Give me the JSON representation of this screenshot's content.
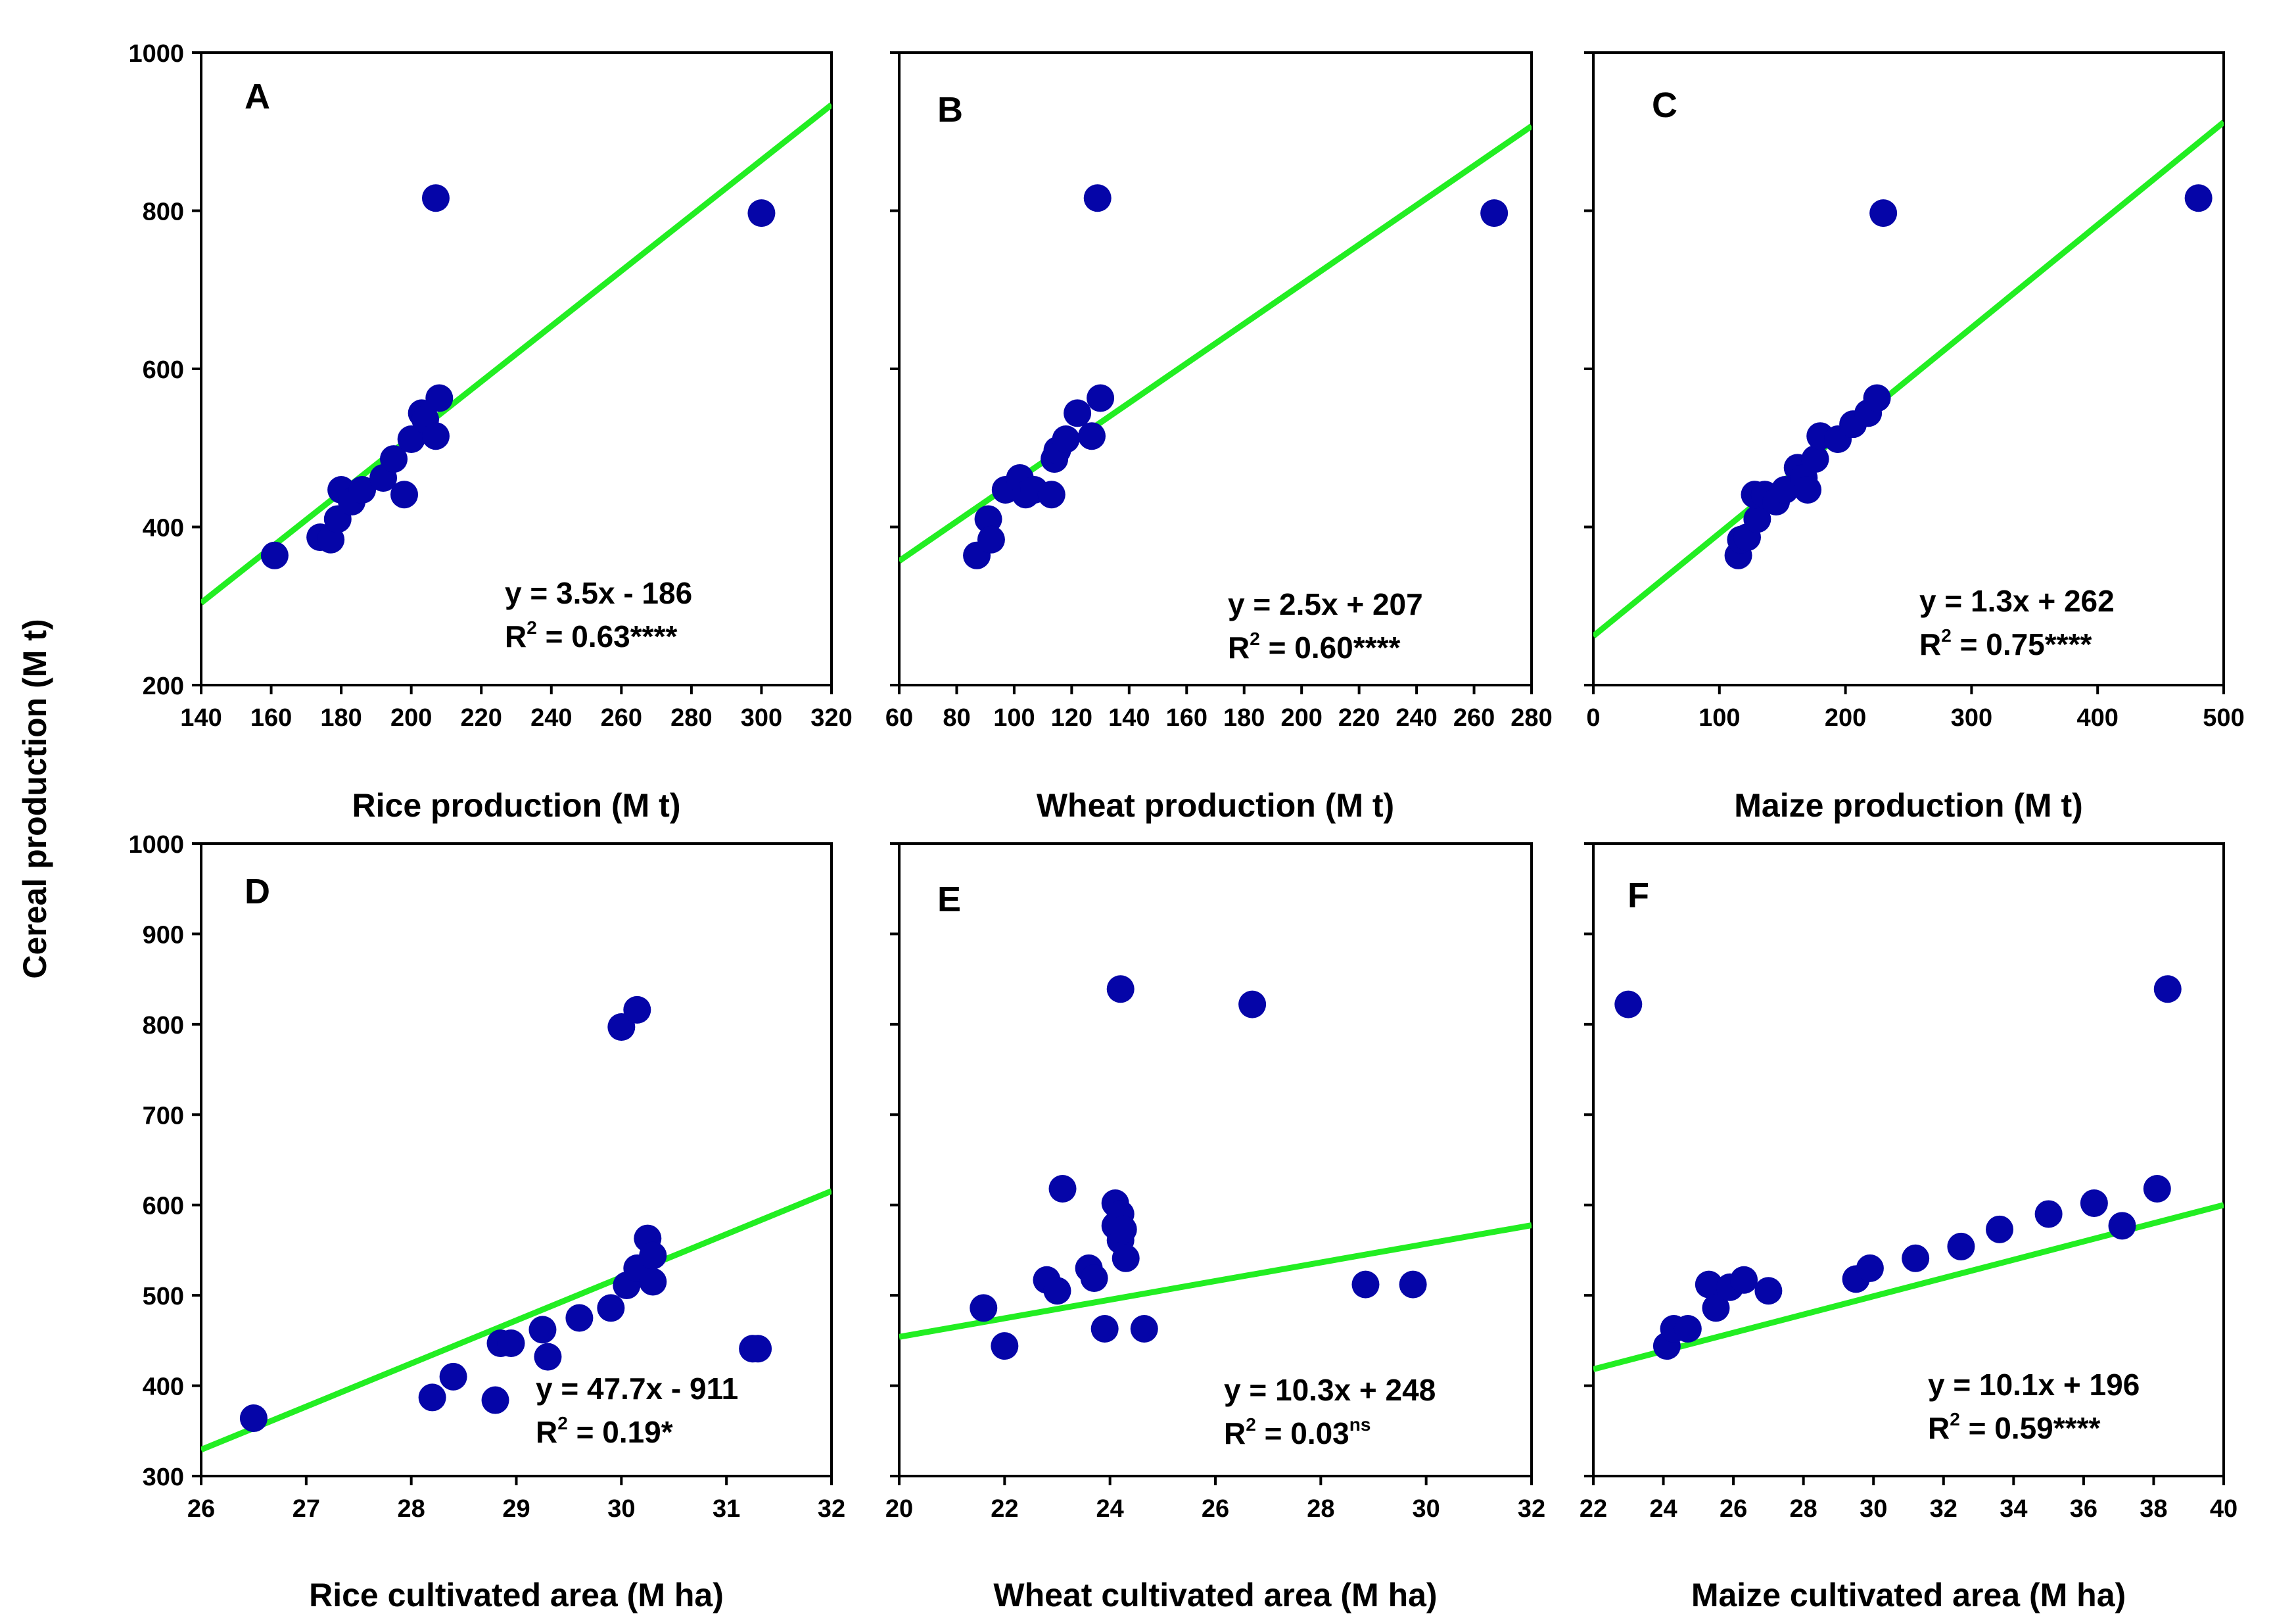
{
  "figure": {
    "shared_ylabel": "Cereal production (M t)"
  },
  "chart_data": [
    {
      "type": "scatter",
      "panel": "A",
      "xlabel": "Rice production (M t)",
      "ylabel": "Cereal production (M t)",
      "xlim": [
        140,
        320
      ],
      "ylim": [
        200,
        1000
      ],
      "xticks": [
        140,
        160,
        180,
        200,
        220,
        240,
        260,
        280,
        300,
        320
      ],
      "yticks": [
        200,
        400,
        600,
        800,
        1000
      ],
      "show_x_tick_labels": true,
      "show_y_tick_labels": true,
      "points": [
        [
          161,
          364
        ],
        [
          174,
          387
        ],
        [
          177,
          384
        ],
        [
          179,
          410
        ],
        [
          180,
          447
        ],
        [
          183,
          432
        ],
        [
          186,
          447
        ],
        [
          192,
          462
        ],
        [
          195,
          486
        ],
        [
          198,
          441
        ],
        [
          200,
          511
        ],
        [
          203,
          544
        ],
        [
          204,
          536
        ],
        [
          207,
          515
        ],
        [
          208,
          563
        ],
        [
          207,
          816
        ],
        [
          300,
          797
        ]
      ],
      "fit": {
        "slope": 3.5,
        "intercept": -186,
        "x_range": [
          140,
          320
        ]
      },
      "equation": "y = 3.5x - 186",
      "r2_prefix": "R",
      "r2_exp": "2",
      "r2_text": " = 0.63****",
      "r2_sig": ""
    },
    {
      "type": "scatter",
      "panel": "B",
      "xlabel": "Wheat production (M t)",
      "ylabel": "Cereal production (M t)",
      "xlim": [
        60,
        280
      ],
      "ylim": [
        200,
        1000
      ],
      "xticks": [
        60,
        80,
        100,
        120,
        140,
        160,
        180,
        200,
        220,
        240,
        260,
        280
      ],
      "yticks": [
        200,
        400,
        600,
        800,
        1000
      ],
      "show_x_tick_labels": true,
      "show_y_tick_labels": false,
      "points": [
        [
          87,
          364
        ],
        [
          91,
          410
        ],
        [
          92,
          384
        ],
        [
          97,
          447
        ],
        [
          102,
          462
        ],
        [
          104,
          441
        ],
        [
          107,
          447
        ],
        [
          113,
          441
        ],
        [
          114,
          486
        ],
        [
          115,
          497
        ],
        [
          118,
          511
        ],
        [
          122,
          544
        ],
        [
          127,
          515
        ],
        [
          130,
          563
        ],
        [
          129,
          816
        ],
        [
          267,
          797
        ]
      ],
      "fit": {
        "slope": 2.5,
        "intercept": 207,
        "x_range": [
          60,
          280
        ]
      },
      "equation": "y = 2.5x + 207",
      "r2_prefix": "R",
      "r2_exp": "2",
      "r2_text": " = 0.60****",
      "r2_sig": ""
    },
    {
      "type": "scatter",
      "panel": "C",
      "xlabel": "Maize production (M t)",
      "ylabel": "Cereal production (M t)",
      "xlim": [
        0,
        500
      ],
      "ylim": [
        200,
        1000
      ],
      "xticks": [
        0,
        100,
        200,
        300,
        400,
        500
      ],
      "yticks": [
        200,
        400,
        600,
        800,
        1000
      ],
      "show_x_tick_labels": true,
      "show_y_tick_labels": false,
      "points": [
        [
          115,
          364
        ],
        [
          117,
          384
        ],
        [
          122,
          387
        ],
        [
          130,
          410
        ],
        [
          128,
          441
        ],
        [
          136,
          441
        ],
        [
          145,
          432
        ],
        [
          152,
          447
        ],
        [
          162,
          475
        ],
        [
          167,
          462
        ],
        [
          170,
          447
        ],
        [
          176,
          486
        ],
        [
          180,
          515
        ],
        [
          194,
          511
        ],
        [
          206,
          530
        ],
        [
          218,
          544
        ],
        [
          225,
          563
        ],
        [
          230,
          797
        ],
        [
          480,
          816
        ]
      ],
      "fit": {
        "slope": 1.3,
        "intercept": 262,
        "x_range": [
          0,
          500
        ]
      },
      "equation": "y = 1.3x + 262",
      "r2_prefix": "R",
      "r2_exp": "2",
      "r2_text": " = 0.75****",
      "r2_sig": ""
    },
    {
      "type": "scatter",
      "panel": "D",
      "xlabel": "Rice  cultivated area (M ha)",
      "ylabel": "Cereal production (M t)",
      "xlim": [
        26,
        32
      ],
      "ylim": [
        300,
        1000
      ],
      "xticks": [
        26,
        27,
        28,
        29,
        30,
        31,
        32
      ],
      "yticks": [
        300,
        400,
        500,
        600,
        700,
        800,
        900,
        1000
      ],
      "show_x_tick_labels": true,
      "show_y_tick_labels": true,
      "points": [
        [
          26.5,
          364
        ],
        [
          28.2,
          387
        ],
        [
          28.4,
          410
        ],
        [
          28.8,
          384
        ],
        [
          28.85,
          447
        ],
        [
          28.95,
          447
        ],
        [
          29.25,
          462
        ],
        [
          29.3,
          432
        ],
        [
          29.6,
          475
        ],
        [
          29.9,
          486
        ],
        [
          30.05,
          511
        ],
        [
          30.15,
          530
        ],
        [
          30.25,
          563
        ],
        [
          30.3,
          544
        ],
        [
          30.3,
          515
        ],
        [
          30.0,
          797
        ],
        [
          30.15,
          816
        ],
        [
          31.25,
          441
        ],
        [
          31.3,
          441
        ]
      ],
      "fit": {
        "slope": 47.7,
        "intercept": -911,
        "x_range": [
          26,
          32
        ]
      },
      "equation": "y = 47.7x - 911",
      "r2_prefix": "R",
      "r2_exp": "2",
      "r2_text": " = 0.19*",
      "r2_sig": ""
    },
    {
      "type": "scatter",
      "panel": "E",
      "xlabel": "Wheat  cultivated area (M ha)",
      "ylabel": "Cereal production (M t)",
      "xlim": [
        20,
        32
      ],
      "ylim": [
        300,
        1000
      ],
      "xticks": [
        20,
        22,
        24,
        26,
        28,
        30,
        32
      ],
      "yticks": [
        300,
        400,
        500,
        600,
        700,
        800,
        900,
        1000
      ],
      "show_x_tick_labels": true,
      "show_y_tick_labels": false,
      "points": [
        [
          21.6,
          486
        ],
        [
          22.0,
          444
        ],
        [
          22.8,
          517
        ],
        [
          23.0,
          505
        ],
        [
          23.1,
          618
        ],
        [
          23.6,
          530
        ],
        [
          23.7,
          519
        ],
        [
          23.9,
          463
        ],
        [
          24.1,
          602
        ],
        [
          24.1,
          577
        ],
        [
          24.2,
          590
        ],
        [
          24.2,
          561
        ],
        [
          24.3,
          541
        ],
        [
          24.25,
          573
        ],
        [
          24.65,
          463
        ],
        [
          24.2,
          839
        ],
        [
          26.7,
          822
        ],
        [
          28.85,
          512
        ],
        [
          29.75,
          512
        ]
      ],
      "fit": {
        "slope": 10.3,
        "intercept": 248,
        "x_range": [
          20,
          32
        ]
      },
      "equation": "y = 10.3x + 248",
      "r2_prefix": "R",
      "r2_exp": "2",
      "r2_text": " = 0.03",
      "r2_sig": "ns"
    },
    {
      "type": "scatter",
      "panel": "F",
      "xlabel": "Maize  cultivated area (M ha)",
      "ylabel": "Cereal production (M t)",
      "xlim": [
        22,
        40
      ],
      "ylim": [
        300,
        1000
      ],
      "xticks": [
        22,
        24,
        26,
        28,
        30,
        32,
        34,
        36,
        38,
        40
      ],
      "yticks": [
        300,
        400,
        500,
        600,
        700,
        800,
        900,
        1000
      ],
      "show_x_tick_labels": true,
      "show_y_tick_labels": false,
      "points": [
        [
          23.0,
          822
        ],
        [
          24.1,
          444
        ],
        [
          24.3,
          463
        ],
        [
          24.7,
          463
        ],
        [
          25.3,
          512
        ],
        [
          25.5,
          486
        ],
        [
          25.9,
          509
        ],
        [
          26.3,
          517
        ],
        [
          27.0,
          505
        ],
        [
          29.5,
          518
        ],
        [
          29.9,
          530
        ],
        [
          31.2,
          541
        ],
        [
          32.5,
          554
        ],
        [
          33.6,
          573
        ],
        [
          35.0,
          590
        ],
        [
          36.3,
          602
        ],
        [
          37.1,
          577
        ],
        [
          38.1,
          618
        ],
        [
          38.4,
          839
        ]
      ],
      "fit": {
        "slope": 10.1,
        "intercept": 196,
        "x_range": [
          22,
          40
        ]
      },
      "equation": "y = 10.1x + 196",
      "r2_prefix": "R",
      "r2_exp": "2",
      "r2_text": " = 0.59****",
      "r2_sig": ""
    }
  ]
}
